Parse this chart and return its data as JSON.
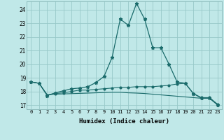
{
  "xlabel": "Humidex (Indice chaleur)",
  "background_color": "#c0e8e8",
  "grid_color": "#98c8c8",
  "line_color": "#1a6b6b",
  "xlim": [
    -0.5,
    23.5
  ],
  "ylim": [
    16.7,
    24.6
  ],
  "yticks": [
    17,
    18,
    19,
    20,
    21,
    22,
    23,
    24
  ],
  "xticks": [
    0,
    1,
    2,
    3,
    4,
    5,
    6,
    7,
    8,
    9,
    10,
    11,
    12,
    13,
    14,
    15,
    16,
    17,
    18,
    19,
    20,
    21,
    22,
    23
  ],
  "line1_x": [
    0,
    1,
    2,
    3,
    4,
    5,
    6,
    7,
    8,
    9,
    10,
    11,
    12,
    13,
    14,
    15,
    16,
    17,
    18,
    19,
    20,
    21,
    22,
    23
  ],
  "line1_y": [
    18.7,
    18.6,
    17.7,
    17.9,
    18.05,
    18.2,
    18.25,
    18.35,
    18.65,
    19.1,
    20.5,
    23.3,
    22.85,
    24.45,
    23.3,
    21.2,
    21.2,
    20.0,
    18.7,
    18.6,
    17.85,
    17.5,
    17.5,
    17.0
  ],
  "line2_x": [
    0,
    1,
    2,
    3,
    4,
    5,
    6,
    7,
    8,
    9,
    10,
    11,
    12,
    13,
    14,
    15,
    16,
    17,
    18,
    19,
    20,
    21,
    22,
    23
  ],
  "line2_y": [
    18.7,
    18.6,
    17.75,
    17.85,
    17.9,
    18.0,
    18.1,
    18.1,
    18.15,
    18.2,
    18.25,
    18.3,
    18.3,
    18.35,
    18.35,
    18.35,
    18.4,
    18.45,
    18.55,
    18.6,
    17.85,
    17.55,
    17.55,
    17.05
  ],
  "line3_x": [
    0,
    1,
    2,
    3,
    4,
    5,
    6,
    7,
    8,
    9,
    10,
    11,
    12,
    13,
    14,
    15,
    16,
    17,
    18,
    19,
    20,
    21,
    22,
    23
  ],
  "line3_y": [
    18.7,
    18.6,
    17.75,
    17.8,
    17.82,
    17.84,
    17.86,
    17.88,
    17.9,
    17.92,
    17.94,
    17.94,
    17.9,
    17.88,
    17.85,
    17.8,
    17.75,
    17.7,
    17.65,
    17.6,
    17.55,
    17.5,
    17.5,
    17.05
  ]
}
